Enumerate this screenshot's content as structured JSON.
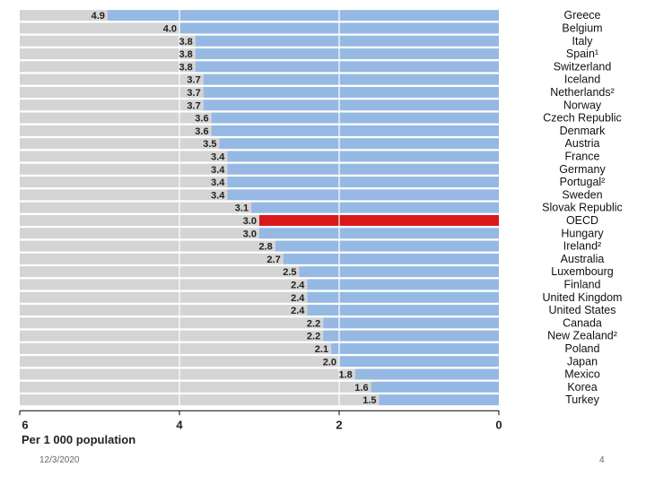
{
  "chart_data": {
    "type": "bar",
    "orientation": "horizontal",
    "x_reversed": true,
    "xlabel": "Per 1 000 population",
    "xlim": [
      0,
      6
    ],
    "xticks": [
      "6",
      "4",
      "2",
      "0"
    ],
    "categories": [
      "Greece",
      "Belgium",
      "Italy",
      "Spain¹",
      "Switzerland",
      "Iceland",
      "Netherlands²",
      "Norway",
      "Czech Republic",
      "Denmark",
      "Austria",
      "France",
      "Germany",
      "Portugal²",
      "Sweden",
      "Slovak Republic",
      "OECD",
      "Hungary",
      "Ireland²",
      "Australia",
      "Luxembourg",
      "Finland",
      "United Kingdom",
      "United States",
      "Canada",
      "New Zealand²",
      "Poland",
      "Japan",
      "Mexico",
      "Korea",
      "Turkey"
    ],
    "values": [
      4.9,
      4.0,
      3.8,
      3.8,
      3.8,
      3.7,
      3.7,
      3.7,
      3.6,
      3.6,
      3.5,
      3.4,
      3.4,
      3.4,
      3.4,
      3.1,
      3.0,
      3.0,
      2.8,
      2.7,
      2.5,
      2.4,
      2.4,
      2.4,
      2.2,
      2.2,
      2.1,
      2.0,
      1.8,
      1.6,
      1.5
    ],
    "value_labels": [
      "4.9",
      "4.0",
      "3.8",
      "3.8",
      "3.8",
      "3.7",
      "3.7",
      "3.7",
      "3.6",
      "3.6",
      "3.5",
      "3.4",
      "3.4",
      "3.4",
      "3.4",
      "3.1",
      "3.0",
      "3.0",
      "2.8",
      "2.7",
      "2.5",
      "2.4",
      "2.4",
      "2.4",
      "2.2",
      "2.2",
      "2.1",
      "2.0",
      "1.8",
      "1.6",
      "1.5"
    ],
    "highlight": "OECD",
    "colors": {
      "bar": "#95b9e3",
      "highlight": "#d9181c",
      "track": "#d4d4d4",
      "grid": "#ffffff"
    }
  },
  "footer": {
    "date": "12/3/2020",
    "page": "4"
  }
}
